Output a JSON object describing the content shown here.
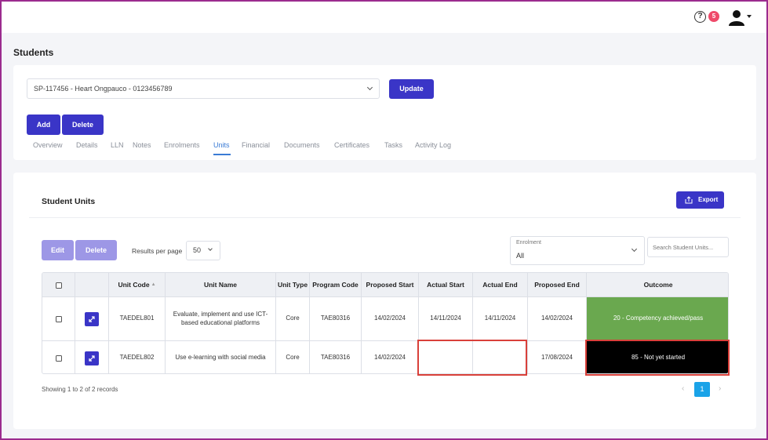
{
  "header": {
    "help_icon": "question-circle-icon",
    "notification_count": "5",
    "avatar_icon": "user-icon"
  },
  "page": {
    "title": "Students"
  },
  "student_select": {
    "value": "SP-117456 - Heart Ongpauco - 0123456789"
  },
  "buttons": {
    "update": "Update",
    "add": "Add",
    "delete": "Delete"
  },
  "tabs": [
    {
      "label": "Overview"
    },
    {
      "label": "Details"
    },
    {
      "label": "LLN"
    },
    {
      "label": "Notes"
    },
    {
      "label": "Enrolments"
    },
    {
      "label": "Units",
      "active": true
    },
    {
      "label": "Financial"
    },
    {
      "label": "Documents"
    },
    {
      "label": "Certificates"
    },
    {
      "label": "Tasks"
    },
    {
      "label": "Activity Log"
    }
  ],
  "units": {
    "title": "Student Units",
    "export_label": "Export",
    "edit_label": "Edit",
    "delete_label": "Delete",
    "results_per_page_label": "Results per page",
    "results_per_page_value": "50",
    "enrolment_label": "Enrolment",
    "enrolment_value": "All",
    "search_placeholder": "Search Student Units...",
    "columns": [
      "Unit Code",
      "Unit Name",
      "Unit Type",
      "Program Code",
      "Proposed Start",
      "Actual Start",
      "Actual End",
      "Proposed End",
      "Outcome"
    ],
    "rows": [
      {
        "unit_code": "TAEDEL801",
        "unit_name": "Evaluate, implement and use ICT-based educational platforms",
        "unit_type": "Core",
        "program_code": "TAE80316",
        "proposed_start": "14/02/2024",
        "actual_start": "14/11/2024",
        "actual_end": "14/11/2024",
        "proposed_end": "14/02/2024",
        "outcome": "20 - Competency achieved/pass",
        "outcome_color": "#6aa84f"
      },
      {
        "unit_code": "TAEDEL802",
        "unit_name": "Use e-learning with social media",
        "unit_type": "Core",
        "program_code": "TAE80316",
        "proposed_start": "14/02/2024",
        "actual_start": "",
        "actual_end": "",
        "proposed_end": "17/08/2024",
        "outcome": "85 - Not yet started",
        "outcome_color": "#000000"
      }
    ],
    "showing_text": "Showing 1 to 2 of 2 records",
    "current_page": "1"
  },
  "colors": {
    "primary": "#3a35c7",
    "highlight": "#d9403a",
    "pager": "#1aa3e8"
  }
}
